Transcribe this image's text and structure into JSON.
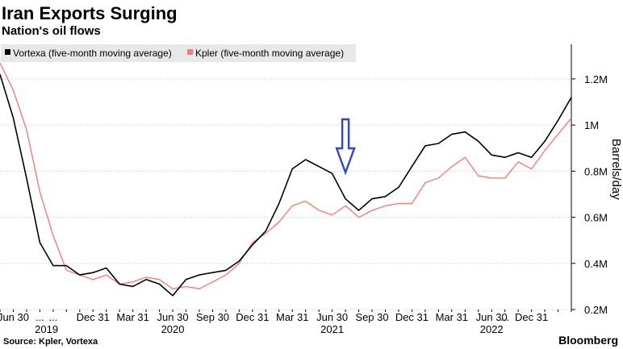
{
  "chart_data": {
    "type": "line",
    "title": "Iran Exports Surging",
    "subtitle": "Nation's oil flows",
    "ylabel": "Barrels/day",
    "ylim": [
      0.2,
      1.35
    ],
    "yticks": [
      {
        "value": 0.2,
        "label": "0.2M"
      },
      {
        "value": 0.4,
        "label": "0.4M"
      },
      {
        "value": 0.6,
        "label": "0.6M"
      },
      {
        "value": 0.8,
        "label": "0.8M"
      },
      {
        "value": 1.0,
        "label": "1M"
      },
      {
        "value": 1.2,
        "label": "1.2M"
      }
    ],
    "x_ticks": [
      {
        "index": 1,
        "label": "Jun 30"
      },
      {
        "index": 3,
        "label": "..."
      },
      {
        "index": 4,
        "label": "..."
      },
      {
        "index": 7,
        "label": "Dec 31"
      },
      {
        "index": 10,
        "label": "Mar 31"
      },
      {
        "index": 13,
        "label": "Jun 30"
      },
      {
        "index": 16,
        "label": "Sep 30"
      },
      {
        "index": 19,
        "label": "Dec 31"
      },
      {
        "index": 22,
        "label": "Mar 31"
      },
      {
        "index": 25,
        "label": "Jun 30"
      },
      {
        "index": 28,
        "label": "Sep 30"
      },
      {
        "index": 31,
        "label": "Dec 31"
      },
      {
        "index": 34,
        "label": "Mar 31"
      },
      {
        "index": 37,
        "label": "Jun 30"
      },
      {
        "index": 38,
        "label": "..."
      },
      {
        "index": 40,
        "label": "Dec 31"
      }
    ],
    "year_labels": [
      {
        "index": 3.5,
        "label": "2019"
      },
      {
        "index": 13,
        "label": "2020"
      },
      {
        "index": 25,
        "label": "2021"
      },
      {
        "index": 37,
        "label": "2022"
      }
    ],
    "series": [
      {
        "name": "Vortexa (five-month moving average)",
        "color": "#000000",
        "values": [
          1.22,
          1.03,
          0.77,
          0.49,
          0.39,
          0.39,
          0.35,
          0.36,
          0.38,
          0.31,
          0.3,
          0.33,
          0.31,
          0.26,
          0.33,
          0.35,
          0.36,
          0.37,
          0.41,
          0.48,
          0.54,
          0.66,
          0.81,
          0.85,
          0.82,
          0.79,
          0.68,
          0.63,
          0.68,
          0.69,
          0.73,
          0.82,
          0.91,
          0.92,
          0.96,
          0.97,
          0.93,
          0.87,
          0.86,
          0.88,
          0.86,
          0.93,
          1.02,
          1.12
        ]
      },
      {
        "name": "Kpler (five-month moving average)",
        "color": "#f07f77",
        "values": [
          1.27,
          1.15,
          0.98,
          0.71,
          0.52,
          0.37,
          0.35,
          0.33,
          0.35,
          0.31,
          0.32,
          0.34,
          0.33,
          0.29,
          0.3,
          0.29,
          0.32,
          0.35,
          0.4,
          0.49,
          0.53,
          0.58,
          0.65,
          0.67,
          0.63,
          0.61,
          0.65,
          0.6,
          0.63,
          0.65,
          0.66,
          0.66,
          0.75,
          0.77,
          0.82,
          0.86,
          0.78,
          0.77,
          0.77,
          0.84,
          0.81,
          0.89,
          0.96,
          1.03
        ]
      }
    ],
    "annotation": {
      "type": "arrow",
      "x_index": 26,
      "direction": "down",
      "color": "#3344cc"
    }
  },
  "source": "Source: Kpler, Vortexa",
  "logo": "Bloomberg"
}
